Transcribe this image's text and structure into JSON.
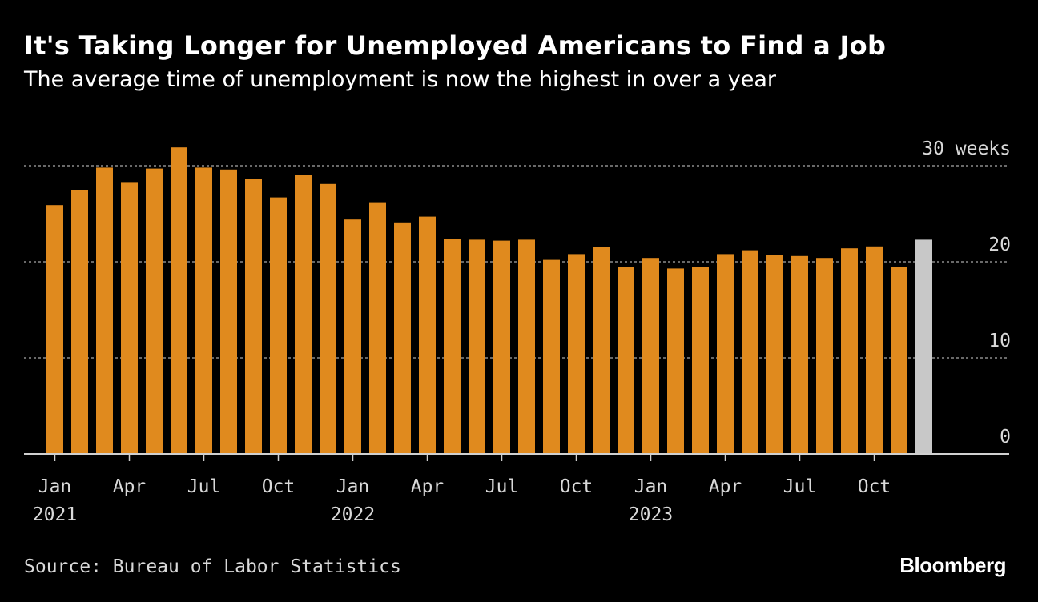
{
  "title": "It's Taking Longer for Unemployed Americans to Find a Job",
  "subtitle": "The average time of unemployment is now the highest in over a year",
  "source": "Source: Bureau of Labor Statistics",
  "brand": "Bloomberg",
  "colors": {
    "bar": "#e08a1e",
    "bar_highlight": "#c8c8c8",
    "grid": "#8c8c8c",
    "text": "#ffffff",
    "axis_text": "#d9d9d9",
    "background": "#000000"
  },
  "chart_data": {
    "type": "bar",
    "ylabel": "",
    "xlabel": "",
    "ylim": [
      0,
      30
    ],
    "y_ticks": [
      {
        "value": 30,
        "label": "30 weeks"
      },
      {
        "value": 20,
        "label": "20"
      },
      {
        "value": 10,
        "label": "10"
      },
      {
        "value": 0,
        "label": "0"
      }
    ],
    "grid": true,
    "categories": [
      "2021-01",
      "2021-02",
      "2021-03",
      "2021-04",
      "2021-05",
      "2021-06",
      "2021-07",
      "2021-08",
      "2021-09",
      "2021-10",
      "2021-11",
      "2021-12",
      "2022-01",
      "2022-02",
      "2022-03",
      "2022-04",
      "2022-05",
      "2022-06",
      "2022-07",
      "2022-08",
      "2022-09",
      "2022-10",
      "2022-11",
      "2022-12",
      "2023-01",
      "2023-02",
      "2023-03",
      "2023-04",
      "2023-05",
      "2023-06",
      "2023-07",
      "2023-08",
      "2023-09",
      "2023-10",
      "2023-11",
      "2023-12"
    ],
    "values": [
      25.9,
      27.5,
      29.8,
      28.3,
      29.7,
      31.9,
      29.8,
      29.6,
      28.6,
      26.7,
      29.0,
      28.1,
      24.4,
      26.2,
      24.1,
      24.7,
      22.4,
      22.3,
      22.2,
      22.3,
      20.2,
      20.8,
      21.5,
      19.5,
      20.4,
      19.3,
      19.5,
      20.8,
      21.2,
      20.7,
      20.6,
      20.4,
      21.4,
      21.6,
      19.5,
      22.3
    ],
    "highlight_index": 35,
    "x_ticks": [
      {
        "index": 0,
        "month": "Jan",
        "year": "2021"
      },
      {
        "index": 3,
        "month": "Apr",
        "year": ""
      },
      {
        "index": 6,
        "month": "Jul",
        "year": ""
      },
      {
        "index": 9,
        "month": "Oct",
        "year": ""
      },
      {
        "index": 12,
        "month": "Jan",
        "year": "2022"
      },
      {
        "index": 15,
        "month": "Apr",
        "year": ""
      },
      {
        "index": 18,
        "month": "Jul",
        "year": ""
      },
      {
        "index": 21,
        "month": "Oct",
        "year": ""
      },
      {
        "index": 24,
        "month": "Jan",
        "year": "2023"
      },
      {
        "index": 27,
        "month": "Apr",
        "year": ""
      },
      {
        "index": 30,
        "month": "Jul",
        "year": ""
      },
      {
        "index": 33,
        "month": "Oct",
        "year": ""
      }
    ]
  }
}
